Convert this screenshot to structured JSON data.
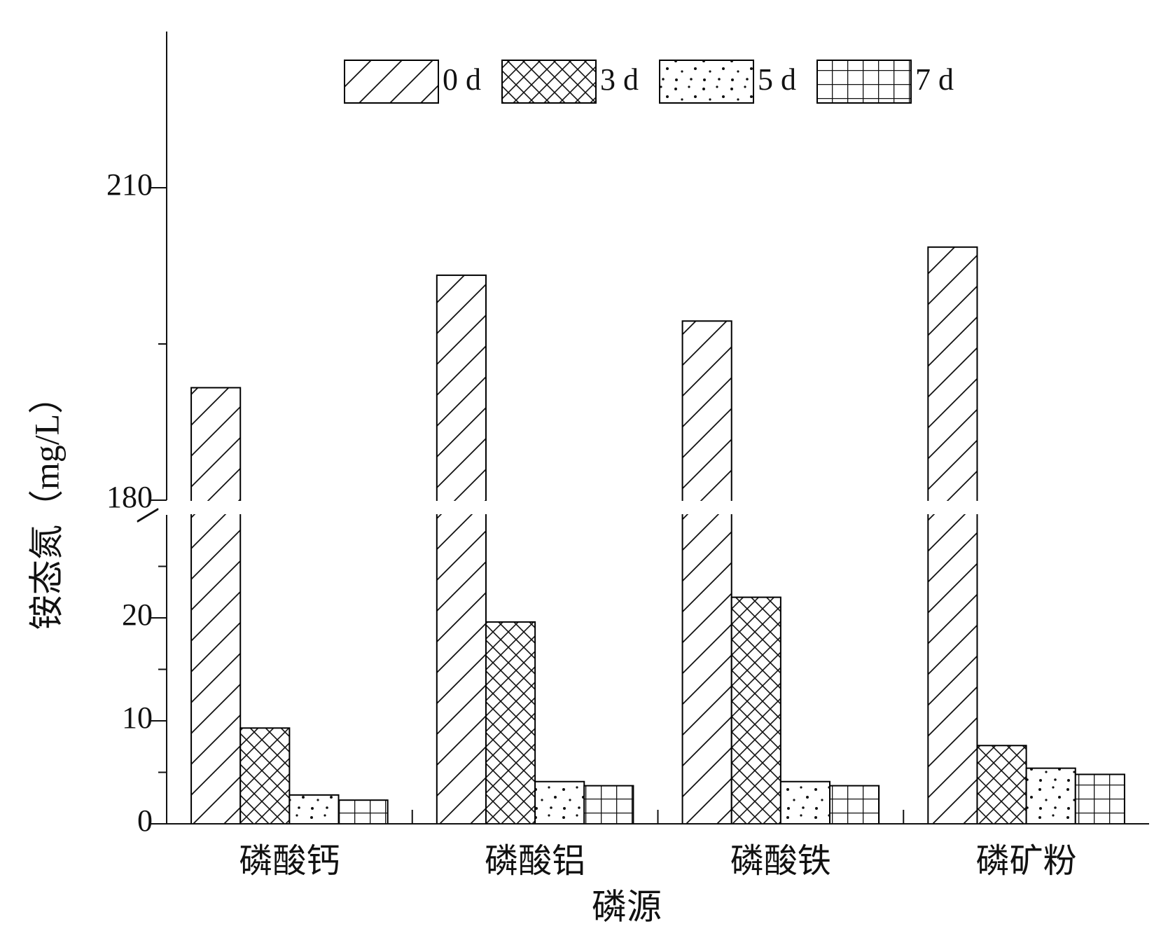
{
  "chart_data": {
    "type": "bar",
    "x_label": "磷源",
    "y_label": "铵态氮（mg/L）",
    "categories": [
      "磷酸钙",
      "磷酸铝",
      "磷酸铁",
      "磷矿粉"
    ],
    "series": [
      {
        "name": "0 d",
        "color": "#000000",
        "pattern": "hatch",
        "values": [
          190.8,
          201.6,
          197.2,
          204.3
        ]
      },
      {
        "name": "3 d",
        "color": "#000000",
        "pattern": "crosshatch",
        "values": [
          9.3,
          19.6,
          22.0,
          7.6
        ]
      },
      {
        "name": "5 d",
        "color": "#000000",
        "pattern": "dots",
        "values": [
          2.8,
          4.1,
          4.1,
          5.4
        ]
      },
      {
        "name": "7 d",
        "color": "#000000",
        "pattern": "grid",
        "values": [
          2.3,
          3.7,
          3.7,
          4.8
        ]
      }
    ],
    "ylim": [
      0,
      225
    ],
    "axis_break": [
      30,
      180
    ],
    "yticks": [
      0,
      10,
      20,
      180,
      210
    ],
    "minor_yticks": [
      5,
      15,
      25,
      195
    ],
    "legend": "top",
    "grid": false
  }
}
